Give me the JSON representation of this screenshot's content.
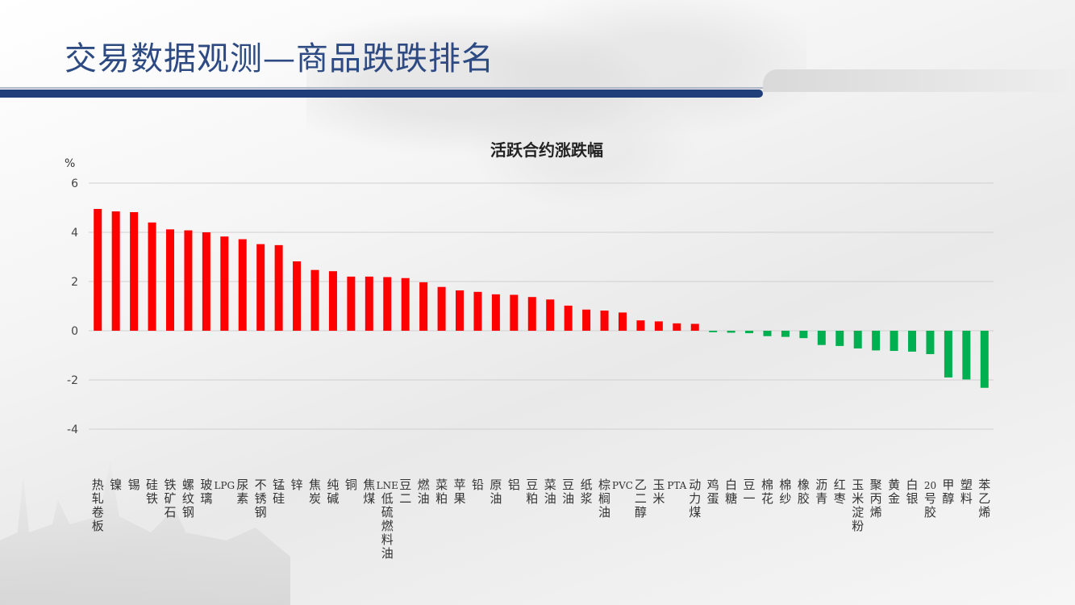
{
  "page": {
    "title": "交易数据观测—商品跌跌排名",
    "title_color": "#2d4a82",
    "bar_color": "#1f3e7a"
  },
  "chart_data": {
    "type": "bar",
    "title": "活跃合约涨跌幅",
    "ylabel": "%",
    "ylim": [
      -5,
      6
    ],
    "yticks": [
      6,
      4,
      2,
      0,
      -2,
      -4
    ],
    "grid": true,
    "legend": "none",
    "colors": {
      "positive": "#ff0000",
      "negative": "#00b050"
    },
    "categories": [
      "热轧卷板",
      "镍",
      "锡",
      "硅铁",
      "铁矿石",
      "螺纹钢",
      "玻璃",
      "LPG",
      "尿素",
      "不锈钢",
      "锰硅",
      "锌",
      "焦炭",
      "纯碱",
      "铜",
      "焦煤",
      "LNE低硫燃料油",
      "豆二",
      "燃油",
      "菜粕",
      "苹果",
      "铅",
      "原油",
      "铝",
      "豆粕",
      "菜油",
      "豆油",
      "纸浆",
      "棕榈油",
      "PVC",
      "乙二醇",
      "玉米",
      "PTA",
      "动力煤",
      "鸡蛋",
      "白糖",
      "豆一",
      "棉花",
      "棉纱",
      "橡胶",
      "沥青",
      "红枣",
      "玉米淀粉",
      "聚丙烯",
      "黄金",
      "白银",
      "20号胶",
      "甲醇",
      "塑料",
      "苯乙烯"
    ],
    "values": [
      4.95,
      4.85,
      4.82,
      4.4,
      4.12,
      4.08,
      4.0,
      3.83,
      3.72,
      3.52,
      3.48,
      2.82,
      2.47,
      2.42,
      2.2,
      2.2,
      2.18,
      2.14,
      1.97,
      1.78,
      1.64,
      1.58,
      1.48,
      1.46,
      1.37,
      1.27,
      1.02,
      0.86,
      0.82,
      0.74,
      0.42,
      0.38,
      0.3,
      0.28,
      -0.06,
      -0.08,
      -0.1,
      -0.22,
      -0.25,
      -0.3,
      -0.58,
      -0.62,
      -0.72,
      -0.8,
      -0.82,
      -0.85,
      -0.95,
      -1.9,
      -1.98,
      -2.32
    ],
    "category_label_lines": [
      [
        "热",
        "轧",
        "卷",
        "板"
      ],
      [
        "镍"
      ],
      [
        "锡"
      ],
      [
        "硅",
        "铁"
      ],
      [
        "铁",
        "矿",
        "石"
      ],
      [
        "螺",
        "纹",
        "钢"
      ],
      [
        "玻",
        "璃"
      ],
      [
        "LPG"
      ],
      [
        "尿",
        "素"
      ],
      [
        "不",
        "锈",
        "钢"
      ],
      [
        "锰",
        "硅"
      ],
      [
        "锌"
      ],
      [
        "焦",
        "炭"
      ],
      [
        "纯",
        "碱"
      ],
      [
        "铜"
      ],
      [
        "焦",
        "煤"
      ],
      [
        "LNE",
        "低",
        "硫",
        "燃",
        "料",
        "油"
      ],
      [
        "豆",
        "二"
      ],
      [
        "燃",
        "油"
      ],
      [
        "菜",
        "粕"
      ],
      [
        "苹",
        "果"
      ],
      [
        "铅"
      ],
      [
        "原",
        "油"
      ],
      [
        "铝"
      ],
      [
        "豆",
        "粕"
      ],
      [
        "菜",
        "油"
      ],
      [
        "豆",
        "油"
      ],
      [
        "纸",
        "浆"
      ],
      [
        "棕",
        "榈",
        "油"
      ],
      [
        "PVC"
      ],
      [
        "乙",
        "二",
        "醇"
      ],
      [
        "玉",
        "米"
      ],
      [
        "PTA"
      ],
      [
        "动",
        "力",
        "煤"
      ],
      [
        "鸡",
        "蛋"
      ],
      [
        "白",
        "糖"
      ],
      [
        "豆",
        "一"
      ],
      [
        "棉",
        "花"
      ],
      [
        "棉",
        "纱"
      ],
      [
        "橡",
        "胶"
      ],
      [
        "沥",
        "青"
      ],
      [
        "红",
        "枣"
      ],
      [
        "玉",
        "米",
        "淀",
        "粉"
      ],
      [
        "聚",
        "丙",
        "烯"
      ],
      [
        "黄",
        "金"
      ],
      [
        "白",
        "银"
      ],
      [
        "20",
        "号",
        "胶"
      ],
      [
        "甲",
        "醇"
      ],
      [
        "塑",
        "料"
      ],
      [
        "苯",
        "乙",
        "烯"
      ]
    ]
  }
}
